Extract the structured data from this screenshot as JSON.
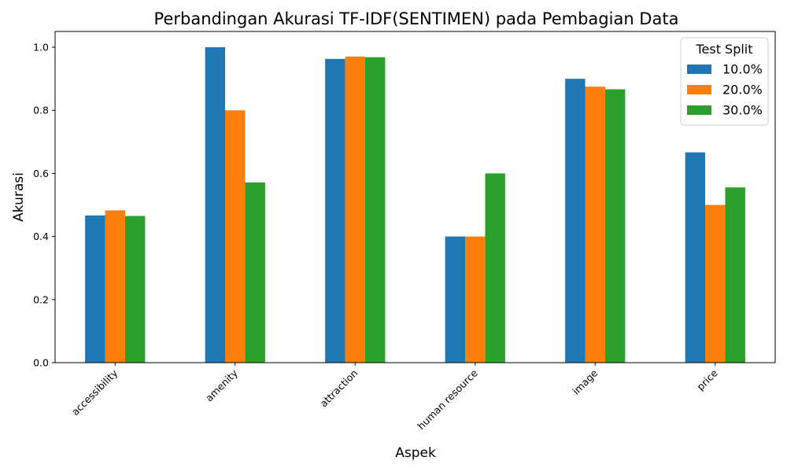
{
  "chart_data": {
    "type": "bar",
    "title": "Perbandingan Akurasi TF-IDF(SENTIMEN) pada Pembagian Data",
    "xlabel": "Aspek",
    "ylabel": "Akurasi",
    "categories": [
      "accessibility",
      "amenity",
      "attraction",
      "human resource",
      "image",
      "price"
    ],
    "series": [
      {
        "name": "10.0%",
        "color": "#1f77b4",
        "values": [
          0.4667,
          1.0,
          0.963,
          0.4,
          0.9,
          0.6667
        ]
      },
      {
        "name": "20.0%",
        "color": "#ff7f0e",
        "values": [
          0.4828,
          0.8,
          0.9706,
          0.4,
          0.875,
          0.5
        ]
      },
      {
        "name": "30.0%",
        "color": "#2ca02c",
        "values": [
          0.4651,
          0.5714,
          0.9684,
          0.6,
          0.8667,
          0.5556
        ]
      }
    ],
    "ylim": [
      0,
      1.05
    ],
    "yticks": [
      0.0,
      0.2,
      0.4,
      0.6,
      0.8,
      1.0
    ],
    "ytick_labels": [
      "0.0",
      "0.2",
      "0.4",
      "0.6",
      "0.8",
      "1.0"
    ],
    "legend": {
      "title": "Test Split",
      "placement": "top-right"
    },
    "grid": false
  }
}
